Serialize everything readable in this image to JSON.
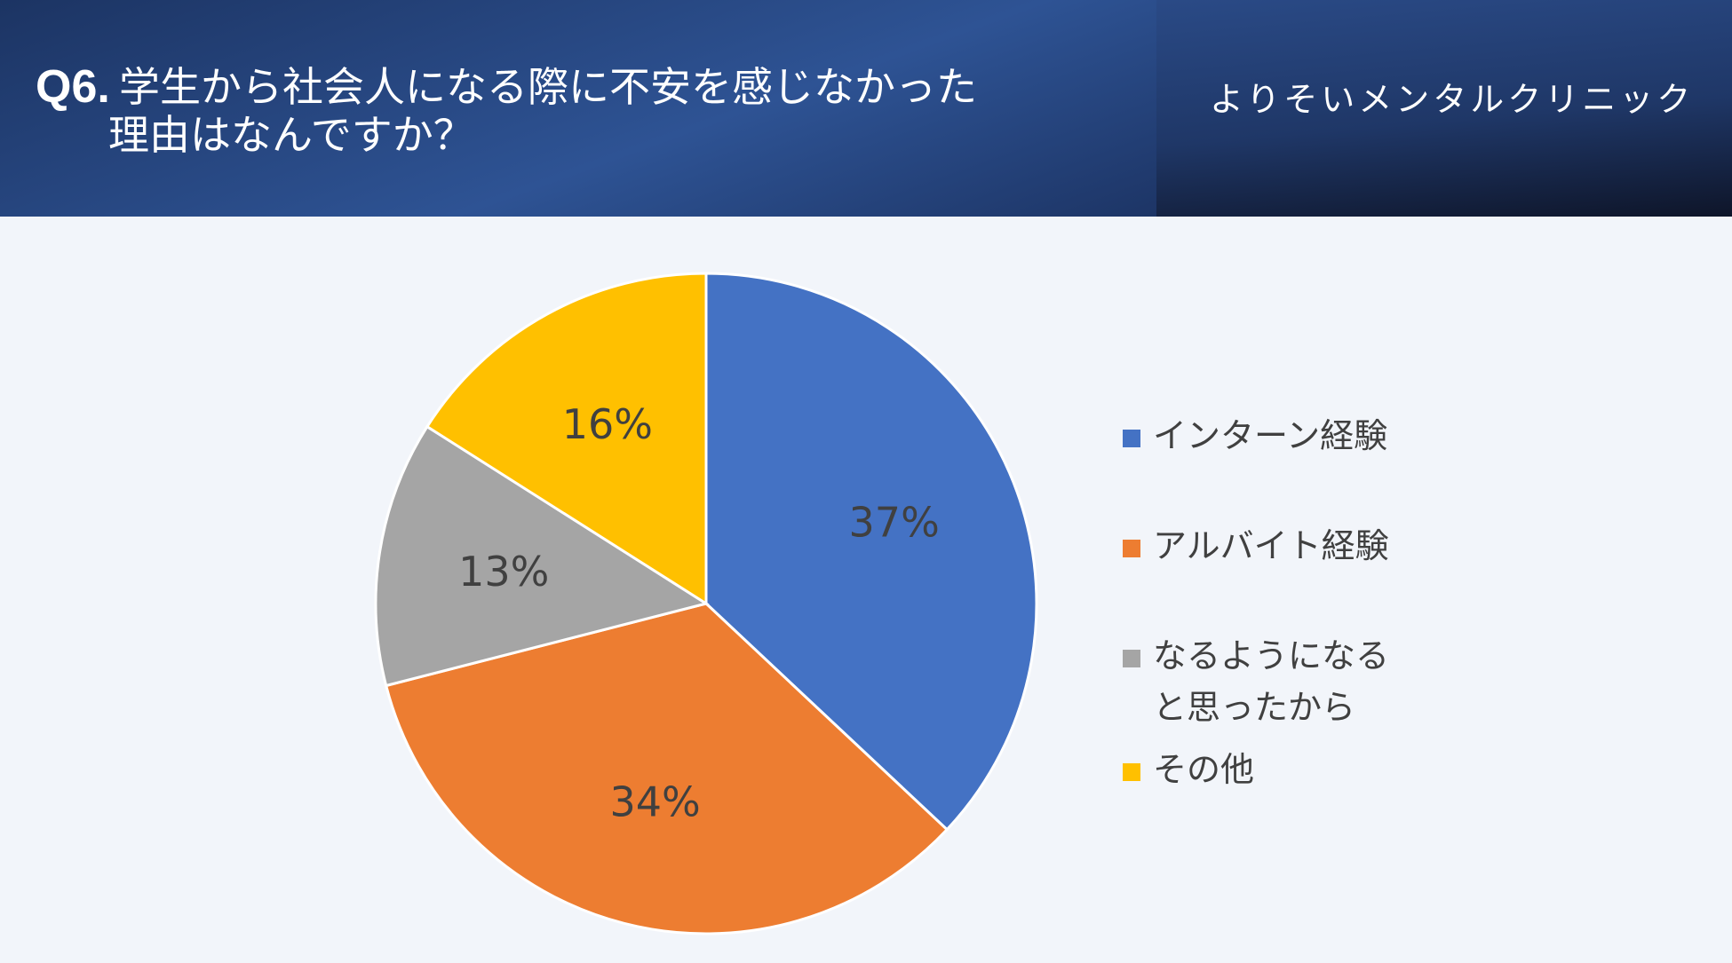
{
  "header": {
    "question_number": "Q6.",
    "title_line1": "学生から社会人になる際に不安を感じなかった",
    "title_line2": "理由はなんですか？",
    "brand": "よりそいメンタルクリニック"
  },
  "colors": {
    "header_bg": "#24427a",
    "page_bg": "#f2f5fa",
    "slice_border": "#ffffff"
  },
  "chart_data": {
    "type": "pie",
    "title": "",
    "start_angle": "12 o'clock, clockwise",
    "legend_position": "right",
    "slices": [
      {
        "label": "インターン経験",
        "value": 37,
        "display": "37%",
        "color": "#4472c4"
      },
      {
        "label": "アルバイト経験",
        "value": 34,
        "display": "34%",
        "color": "#ed7d31"
      },
      {
        "label": "なるようになると思ったから",
        "value": 13,
        "display": "13%",
        "color": "#a5a5a5"
      },
      {
        "label": "その他",
        "value": 16,
        "display": "16%",
        "color": "#ffc000"
      }
    ]
  }
}
